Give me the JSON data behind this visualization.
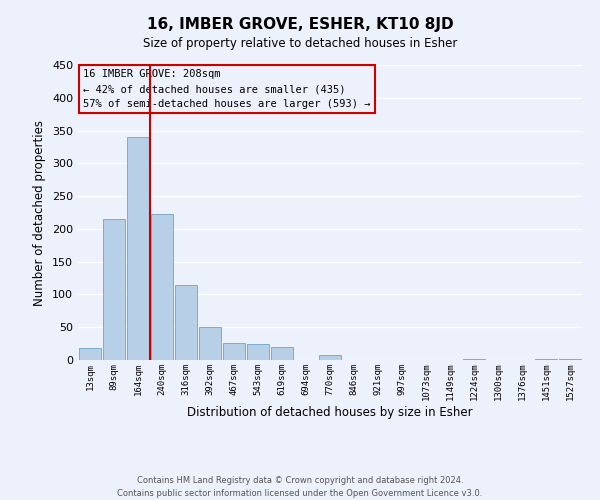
{
  "title": "16, IMBER GROVE, ESHER, KT10 8JD",
  "subtitle": "Size of property relative to detached houses in Esher",
  "xlabel": "Distribution of detached houses by size in Esher",
  "ylabel": "Number of detached properties",
  "bar_labels": [
    "13sqm",
    "89sqm",
    "164sqm",
    "240sqm",
    "316sqm",
    "392sqm",
    "467sqm",
    "543sqm",
    "619sqm",
    "694sqm",
    "770sqm",
    "846sqm",
    "921sqm",
    "997sqm",
    "1073sqm",
    "1149sqm",
    "1224sqm",
    "1300sqm",
    "1376sqm",
    "1451sqm",
    "1527sqm"
  ],
  "bar_values": [
    18,
    215,
    340,
    222,
    115,
    50,
    26,
    25,
    20,
    0,
    7,
    0,
    0,
    0,
    0,
    0,
    2,
    0,
    0,
    2,
    2
  ],
  "bar_color": "#b8cfe8",
  "bar_edge_color": "#7aadd4",
  "ylim": [
    0,
    450
  ],
  "yticks": [
    0,
    50,
    100,
    150,
    200,
    250,
    300,
    350,
    400,
    450
  ],
  "property_label": "16 IMBER GROVE: 208sqm",
  "annotation_line1": "← 42% of detached houses are smaller (435)",
  "annotation_line2": "57% of semi-detached houses are larger (593) →",
  "vline_color": "#cc0000",
  "annotation_box_edgecolor": "#cc0000",
  "footer_line1": "Contains HM Land Registry data © Crown copyright and database right 2024.",
  "footer_line2": "Contains public sector information licensed under the Open Government Licence v3.0.",
  "background_color": "#edf1fb",
  "grid_color": "#ffffff",
  "vline_x_index": 2.5
}
